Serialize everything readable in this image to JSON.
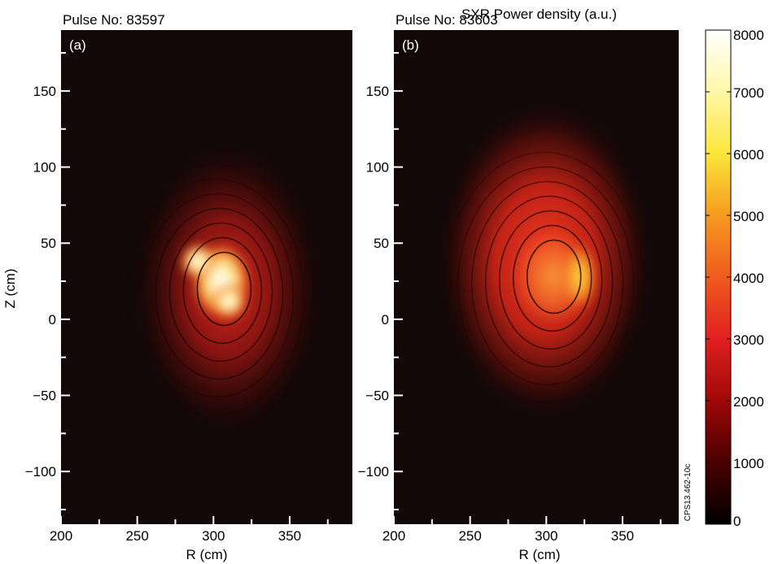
{
  "chart_data": [
    {
      "type": "heatmap",
      "panel": "(a)",
      "title": "Pulse No: 83597",
      "xlabel": "R (cm)",
      "ylabel": "Z (cm)",
      "xlim": [
        200,
        400
      ],
      "ylim": [
        -135,
        190
      ],
      "xticks": [
        200,
        250,
        300,
        350
      ],
      "yticks": [
        150,
        100,
        50,
        0,
        -50,
        -100
      ],
      "xtick_labels": [
        "200",
        "250",
        "300",
        "350"
      ],
      "ytick_labels": [
        "150",
        "100",
        "50",
        "0",
        "−50",
        "−100"
      ],
      "emission_peak": {
        "R": 305,
        "Z": 25,
        "value": 8000
      },
      "emission_lobes": [
        {
          "R": 310,
          "Z": 12,
          "value": 7000
        },
        {
          "R": 290,
          "Z": 38,
          "value": 6500
        }
      ],
      "flux_contours": {
        "center": {
          "R": 307,
          "Z": 20
        },
        "count": 7
      }
    },
    {
      "type": "heatmap",
      "panel": "(b)",
      "title": "Pulse No: 83603",
      "xlabel": "R (cm)",
      "ylabel": "",
      "xlim": [
        200,
        400
      ],
      "ylim": [
        -135,
        190
      ],
      "xticks": [
        200,
        250,
        300,
        350
      ],
      "yticks": [
        150,
        100,
        50,
        0,
        -50,
        -100
      ],
      "xtick_labels": [
        "200",
        "250",
        "300",
        "350"
      ],
      "ytick_labels": [
        "150",
        "100",
        "50",
        "0",
        "−50",
        "−100"
      ],
      "emission_peak": {
        "R": 322,
        "Z": 28,
        "value": 5000
      },
      "emission_ring": {
        "R": 305,
        "Z": 28,
        "value": 3500
      },
      "flux_contours": {
        "center": {
          "R": 305,
          "Z": 28
        },
        "count": 7
      }
    }
  ],
  "colorbar": {
    "title": "SXR Power density (a.u.)",
    "min": 0,
    "max": 8000,
    "ticks": [
      0,
      1000,
      2000,
      3000,
      4000,
      5000,
      6000,
      7000,
      8000
    ],
    "tick_labels": [
      "0",
      "1000",
      "2000",
      "3000",
      "4000",
      "5000",
      "6000",
      "7000",
      "8000"
    ],
    "colormap": [
      "#000000",
      "#4a0000",
      "#a00808",
      "#e02020",
      "#f05a1e",
      "#f79a20",
      "#fbe63a",
      "#fff7a8",
      "#ffffff"
    ]
  },
  "figure_id": "CPS13.462-10c"
}
